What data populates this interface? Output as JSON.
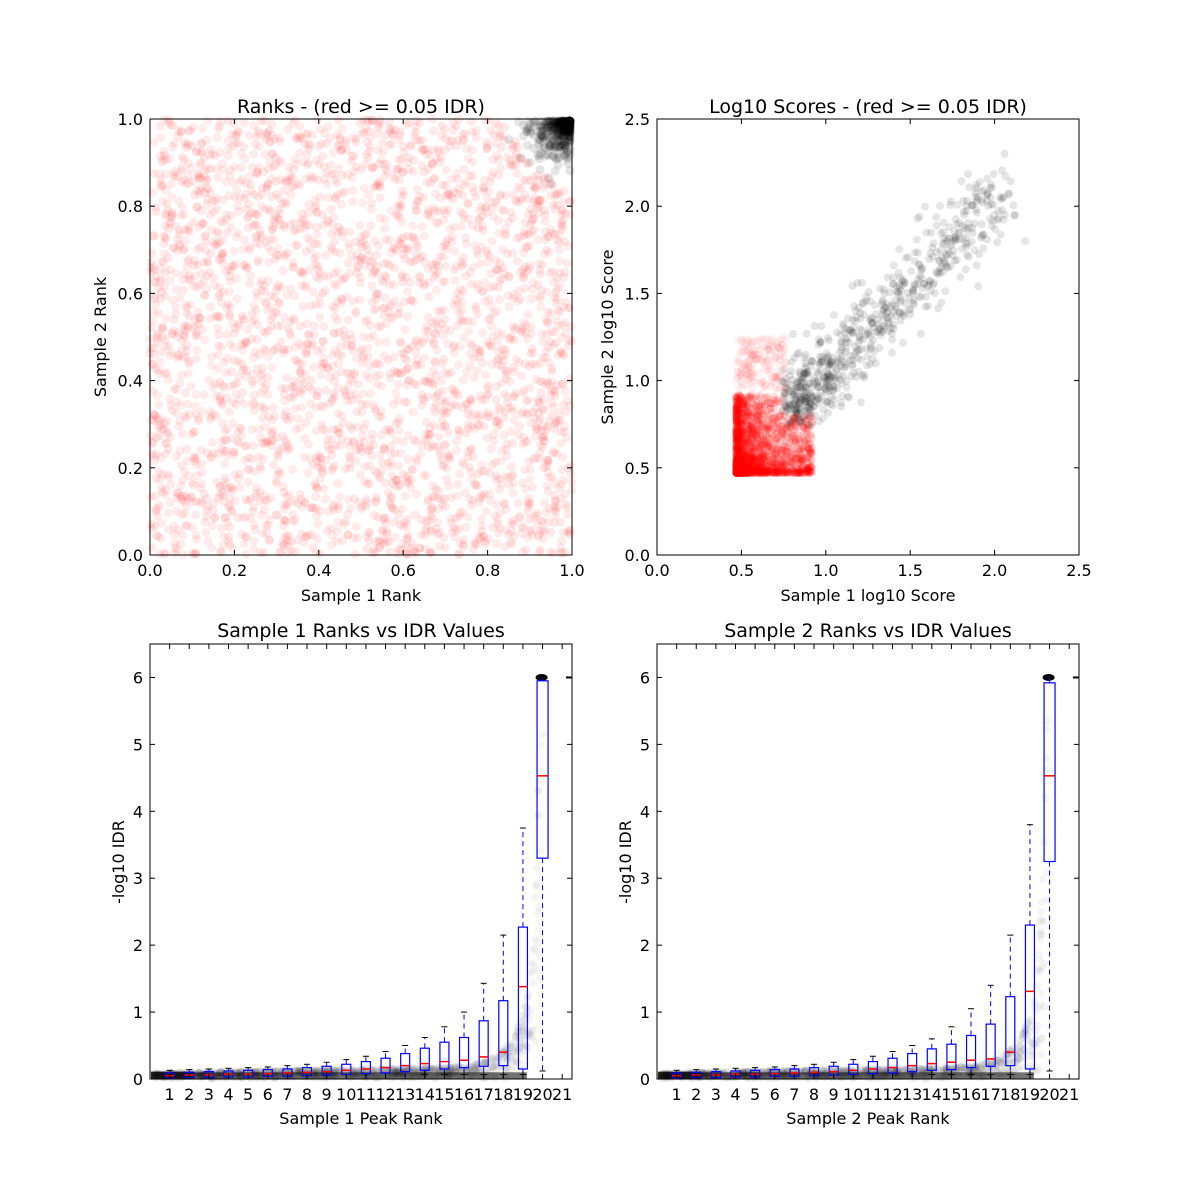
{
  "chart_data": [
    {
      "type": "scatter",
      "title": "Ranks - (red >= 0.05 IDR)",
      "xlabel": "Sample 1 Rank",
      "ylabel": "Sample 2 Rank",
      "xlim": [
        0.0,
        1.0
      ],
      "ylim": [
        0.0,
        1.0
      ],
      "xticks": [
        "0.0",
        "0.2",
        "0.4",
        "0.6",
        "0.8",
        "1.0"
      ],
      "yticks": [
        "0.0",
        "0.2",
        "0.4",
        "0.6",
        "0.8",
        "1.0"
      ],
      "grid": false,
      "series": [
        {
          "color": "#ff0000",
          "description": "uniform cloud over [0,1]x[0,1]",
          "n_points_approx": 3000
        },
        {
          "color": "#000000",
          "description": "dense cluster in top-right corner, x 0.84-1.0, y 0.84-1.0",
          "n_points_approx": 400
        }
      ]
    },
    {
      "type": "scatter",
      "title": "Log10 Scores - (red >= 0.05 IDR)",
      "xlabel": "Sample 1 log10 Score",
      "ylabel": "Sample 2 log10 Score",
      "xlim": [
        0.0,
        2.5
      ],
      "ylim": [
        0.0,
        2.5
      ],
      "xticks": [
        "0.0",
        "0.5",
        "1.0",
        "1.5",
        "2.0",
        "2.5"
      ],
      "yticks": [
        "0.0",
        "0.5",
        "1.0",
        "1.5",
        "2.0",
        "2.5"
      ],
      "grid": false,
      "series": [
        {
          "color": "#ff0000",
          "description": "dense block x 0.47-0.9, y 0.47-0.9"
        },
        {
          "color": "#000000",
          "description": "diagonal band from about (0.75,0.8) to (2.0,2.15)"
        }
      ]
    },
    {
      "type": "box",
      "title": "Sample 1 Ranks vs IDR Values",
      "xlabel": "Sample 1 Peak Rank",
      "ylabel": "-log10 IDR",
      "ylim": [
        0,
        6.5
      ],
      "xticks": [
        "1",
        "2",
        "3",
        "4",
        "5",
        "6",
        "7",
        "8",
        "9",
        "10",
        "11",
        "12",
        "13",
        "14",
        "15",
        "16",
        "17",
        "18",
        "19",
        "20",
        "21"
      ],
      "yticks": [
        "0",
        "1",
        "2",
        "3",
        "4",
        "5",
        "6"
      ],
      "grid": false,
      "boxes": [
        {
          "q1": 0.01,
          "median": 0.05,
          "q3": 0.09,
          "whisker_high": 0.13
        },
        {
          "q1": 0.02,
          "median": 0.06,
          "q3": 0.1,
          "whisker_high": 0.14
        },
        {
          "q1": 0.02,
          "median": 0.06,
          "q3": 0.11,
          "whisker_high": 0.15
        },
        {
          "q1": 0.03,
          "median": 0.07,
          "q3": 0.12,
          "whisker_high": 0.16
        },
        {
          "q1": 0.03,
          "median": 0.07,
          "q3": 0.13,
          "whisker_high": 0.17
        },
        {
          "q1": 0.04,
          "median": 0.08,
          "q3": 0.14,
          "whisker_high": 0.18
        },
        {
          "q1": 0.04,
          "median": 0.09,
          "q3": 0.15,
          "whisker_high": 0.2
        },
        {
          "q1": 0.05,
          "median": 0.1,
          "q3": 0.17,
          "whisker_high": 0.22
        },
        {
          "q1": 0.06,
          "median": 0.11,
          "q3": 0.19,
          "whisker_high": 0.25
        },
        {
          "q1": 0.07,
          "median": 0.13,
          "q3": 0.22,
          "whisker_high": 0.29
        },
        {
          "q1": 0.08,
          "median": 0.15,
          "q3": 0.26,
          "whisker_high": 0.34
        },
        {
          "q1": 0.09,
          "median": 0.17,
          "q3": 0.31,
          "whisker_high": 0.41
        },
        {
          "q1": 0.11,
          "median": 0.2,
          "q3": 0.38,
          "whisker_high": 0.5
        },
        {
          "q1": 0.13,
          "median": 0.23,
          "q3": 0.46,
          "whisker_high": 0.62
        },
        {
          "q1": 0.15,
          "median": 0.26,
          "q3": 0.55,
          "whisker_high": 0.78
        },
        {
          "q1": 0.17,
          "median": 0.28,
          "q3": 0.62,
          "whisker_high": 1.0
        },
        {
          "q1": 0.19,
          "median": 0.33,
          "q3": 0.87,
          "whisker_high": 1.43
        },
        {
          "q1": 0.2,
          "median": 0.4,
          "q3": 1.17,
          "whisker_high": 2.15
        },
        {
          "q1": 0.15,
          "median": 1.38,
          "q3": 2.27,
          "whisker_high": 3.75
        },
        {
          "q1": 3.3,
          "median": 4.53,
          "q3": 5.95,
          "whisker_low": 0.12,
          "whisker_high": 6.0
        }
      ]
    },
    {
      "type": "box",
      "title": "Sample 2 Ranks vs IDR Values",
      "xlabel": "Sample 2 Peak Rank",
      "ylabel": "-log10 IDR",
      "ylim": [
        0,
        6.5
      ],
      "xticks": [
        "1",
        "2",
        "3",
        "4",
        "5",
        "6",
        "7",
        "8",
        "9",
        "10",
        "11",
        "12",
        "13",
        "14",
        "15",
        "16",
        "17",
        "18",
        "19",
        "20",
        "21"
      ],
      "yticks": [
        "0",
        "1",
        "2",
        "3",
        "4",
        "5",
        "6"
      ],
      "grid": false,
      "boxes": [
        {
          "q1": 0.01,
          "median": 0.05,
          "q3": 0.09,
          "whisker_high": 0.13
        },
        {
          "q1": 0.02,
          "median": 0.06,
          "q3": 0.1,
          "whisker_high": 0.14
        },
        {
          "q1": 0.02,
          "median": 0.06,
          "q3": 0.11,
          "whisker_high": 0.15
        },
        {
          "q1": 0.03,
          "median": 0.07,
          "q3": 0.12,
          "whisker_high": 0.16
        },
        {
          "q1": 0.03,
          "median": 0.07,
          "q3": 0.13,
          "whisker_high": 0.17
        },
        {
          "q1": 0.04,
          "median": 0.08,
          "q3": 0.14,
          "whisker_high": 0.18
        },
        {
          "q1": 0.04,
          "median": 0.09,
          "q3": 0.15,
          "whisker_high": 0.2
        },
        {
          "q1": 0.05,
          "median": 0.1,
          "q3": 0.17,
          "whisker_high": 0.22
        },
        {
          "q1": 0.06,
          "median": 0.11,
          "q3": 0.19,
          "whisker_high": 0.25
        },
        {
          "q1": 0.07,
          "median": 0.13,
          "q3": 0.22,
          "whisker_high": 0.29
        },
        {
          "q1": 0.08,
          "median": 0.15,
          "q3": 0.26,
          "whisker_high": 0.34
        },
        {
          "q1": 0.09,
          "median": 0.17,
          "q3": 0.31,
          "whisker_high": 0.41
        },
        {
          "q1": 0.11,
          "median": 0.2,
          "q3": 0.38,
          "whisker_high": 0.5
        },
        {
          "q1": 0.13,
          "median": 0.23,
          "q3": 0.45,
          "whisker_high": 0.6
        },
        {
          "q1": 0.14,
          "median": 0.25,
          "q3": 0.52,
          "whisker_high": 0.78
        },
        {
          "q1": 0.17,
          "median": 0.28,
          "q3": 0.65,
          "whisker_high": 1.05
        },
        {
          "q1": 0.19,
          "median": 0.3,
          "q3": 0.82,
          "whisker_high": 1.4
        },
        {
          "q1": 0.2,
          "median": 0.4,
          "q3": 1.23,
          "whisker_high": 2.15
        },
        {
          "q1": 0.15,
          "median": 1.31,
          "q3": 2.3,
          "whisker_high": 3.8
        },
        {
          "q1": 3.25,
          "median": 4.53,
          "q3": 5.92,
          "whisker_low": 0.12,
          "whisker_high": 6.0
        }
      ]
    }
  ]
}
